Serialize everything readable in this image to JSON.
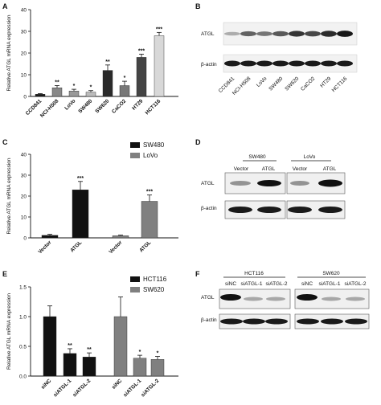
{
  "panels": {
    "A": {
      "letter": "A"
    },
    "B": {
      "letter": "B",
      "rows": [
        "ATGL",
        "β-actin"
      ],
      "lanes": [
        "CCD841",
        "NCI-H508",
        "LoVo",
        "SW480",
        "SW620",
        "CaCO2",
        "HT29",
        "HCT116"
      ],
      "atgl_intensity": [
        0.15,
        0.55,
        0.45,
        0.6,
        0.8,
        0.7,
        0.85,
        0.95
      ]
    },
    "C": {
      "letter": "C"
    },
    "D": {
      "letter": "D",
      "group_labels": [
        "SW480",
        "LoVo"
      ],
      "lane_labels": [
        "Vector",
        "ATGL",
        "Vector",
        "ATGL"
      ],
      "rows": [
        "ATGL",
        "β-actin"
      ]
    },
    "E": {
      "letter": "E"
    },
    "F": {
      "letter": "F",
      "group_labels": [
        "HCT116",
        "SW620"
      ],
      "lane_labels": [
        "siNC",
        "siATGL-1",
        "siATGL-2",
        "siNC",
        "siATGL-1",
        "siATGL-2"
      ],
      "rows": [
        "ATGL",
        "β-actin"
      ]
    }
  },
  "chart_data": [
    {
      "type": "bar",
      "panel": "A",
      "categories": [
        "CCD841",
        "NCI-H508",
        "LoVo",
        "SW480",
        "SW620",
        "CaCO2",
        "HT29",
        "HCT116"
      ],
      "values": [
        1,
        4,
        2.5,
        2,
        12,
        5,
        18,
        28
      ],
      "errors": [
        0.3,
        1,
        0.8,
        0.7,
        2.5,
        2,
        1.5,
        1.5
      ],
      "significance": [
        "",
        "**",
        "*",
        "*",
        "**",
        "*",
        "***",
        "***"
      ],
      "colors": [
        "#1a1a1a",
        "#888888",
        "#999999",
        "#bbbbbb",
        "#2a2a2a",
        "#777777",
        "#444444",
        "#d8d8d8"
      ],
      "ylabel": "Relative ATGL mRNA expression",
      "ylim": [
        0,
        40
      ],
      "yticks": [
        "0",
        "10",
        "20",
        "30",
        "40"
      ]
    },
    {
      "type": "bar",
      "panel": "C",
      "categories": [
        "Vector",
        "ATGL",
        "Vector",
        "ATGL"
      ],
      "series": [
        {
          "name": "SW480",
          "color": "#111111"
        },
        {
          "name": "LoVo",
          "color": "#808080"
        }
      ],
      "values": [
        1.2,
        23,
        1,
        17.5
      ],
      "errors": [
        0.5,
        4,
        0.3,
        3
      ],
      "bar_series": [
        0,
        0,
        1,
        1
      ],
      "significance": [
        "",
        "***",
        "",
        "***"
      ],
      "ylabel": "Relative ATGL mRNA expression",
      "ylim": [
        0,
        40
      ],
      "yticks": [
        "0",
        "10",
        "20",
        "30",
        "40"
      ],
      "legend": "top-right"
    },
    {
      "type": "bar",
      "panel": "E",
      "categories": [
        "siNC",
        "siATGL-1",
        "siATGL-2",
        "siNC",
        "siATGL-1",
        "siATGL-2"
      ],
      "series": [
        {
          "name": "HCT116",
          "color": "#111111"
        },
        {
          "name": "SW620",
          "color": "#808080"
        }
      ],
      "values": [
        1.0,
        0.38,
        0.32,
        1.0,
        0.3,
        0.28
      ],
      "errors": [
        0.18,
        0.08,
        0.07,
        0.33,
        0.05,
        0.05
      ],
      "bar_series": [
        0,
        0,
        0,
        1,
        1,
        1
      ],
      "significance": [
        "",
        "**",
        "**",
        "",
        "*",
        "*"
      ],
      "ylabel": "Relative ATGL mRNA expression",
      "ylim": [
        0,
        1.5
      ],
      "yticks": [
        "0.0",
        "0.5",
        "1.0",
        "1.5"
      ],
      "legend": "top-right"
    }
  ]
}
